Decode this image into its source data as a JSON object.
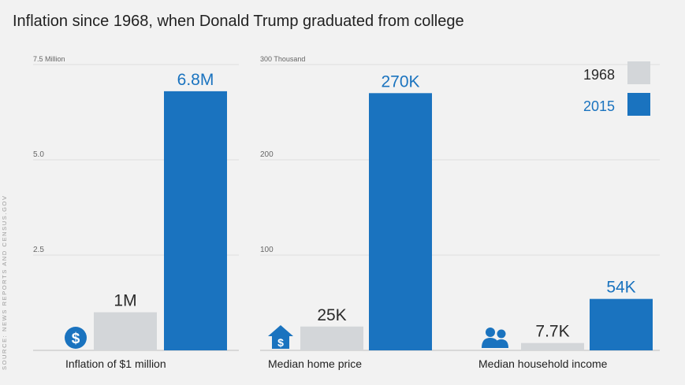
{
  "title": "Inflation since 1968, when Donald Trump graduated from college",
  "source": "SOURCE: NEWS REPORTS AND CENSUS.GOV",
  "colors": {
    "y1968": "#d3d6d9",
    "y2015": "#1a73bf",
    "label_1968": "#2a2a2a",
    "label_2015": "#1a73bf",
    "grid": "#dedede",
    "axis": "#bdbdbd"
  },
  "legend": [
    {
      "label": "1968",
      "color": "#d3d6d9"
    },
    {
      "label": "2015",
      "color": "#1a73bf"
    }
  ],
  "chart_data": [
    {
      "type": "bar",
      "axis_unit_label": "7.5 Million",
      "ylim": [
        0,
        7.5
      ],
      "yticks": [
        {
          "value": 2.5,
          "label": "2.5"
        },
        {
          "value": 5.0,
          "label": "5.0"
        },
        {
          "value": 7.5,
          "label": "7.5 Million"
        }
      ],
      "groups": [
        {
          "category": "Inflation of $1 million",
          "icon": "dollar-circle-icon",
          "bars": [
            {
              "series": "1968",
              "value": 1.0,
              "label": "1M"
            },
            {
              "series": "2015",
              "value": 6.8,
              "label": "6.8M"
            }
          ]
        }
      ]
    },
    {
      "type": "bar",
      "axis_unit_label": "300 Thousand",
      "ylim": [
        0,
        300
      ],
      "yticks": [
        {
          "value": 100,
          "label": "100"
        },
        {
          "value": 200,
          "label": "200"
        },
        {
          "value": 300,
          "label": "300 Thousand"
        }
      ],
      "groups": [
        {
          "category": "Median home price",
          "icon": "house-dollar-icon",
          "bars": [
            {
              "series": "1968",
              "value": 25,
              "label": "25K"
            },
            {
              "series": "2015",
              "value": 270,
              "label": "270K"
            }
          ]
        },
        {
          "category": "Median household income",
          "icon": "people-icon",
          "bars": [
            {
              "series": "1968",
              "value": 7.7,
              "label": "7.7K"
            },
            {
              "series": "2015",
              "value": 54,
              "label": "54K"
            }
          ]
        }
      ]
    }
  ]
}
